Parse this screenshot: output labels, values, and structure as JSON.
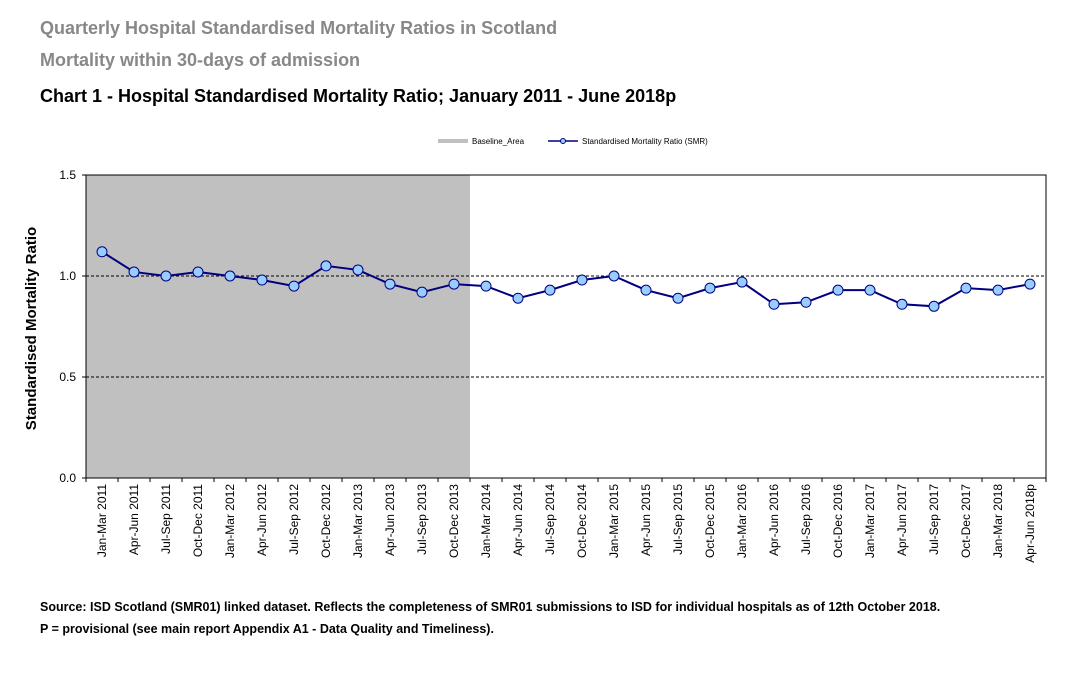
{
  "header": {
    "title": "Quarterly Hospital Standardised Mortality Ratios in Scotland",
    "subtitle": "Mortality within 30-days of admission",
    "chart_heading": "Chart 1 - Hospital Standardised Mortality Ratio; January 2011 - June 2018p"
  },
  "chart_data": {
    "type": "line",
    "ylabel": "Standardised Mortality Ratio",
    "xlabel": "",
    "ylim": [
      0,
      1.5
    ],
    "yticks": [
      "0.0",
      "0.5",
      "1.0",
      "1.5"
    ],
    "grid": "horizontal dashed at 0.5 and 1.0",
    "legend_position": "top-center",
    "categories": [
      "Jan-Mar 2011",
      "Apr-Jun 2011",
      "Jul-Sep 2011",
      "Oct-Dec 2011",
      "Jan-Mar 2012",
      "Apr-Jun 2012",
      "Jul-Sep 2012",
      "Oct-Dec 2012",
      "Jan-Mar 2013",
      "Apr-Jun 2013",
      "Jul-Sep 2013",
      "Oct-Dec 2013",
      "Jan-Mar 2014",
      "Apr-Jun 2014",
      "Jul-Sep 2014",
      "Oct-Dec 2014",
      "Jan-Mar 2015",
      "Apr-Jun 2015",
      "Jul-Sep 2015",
      "Oct-Dec 2015",
      "Jan-Mar 2016",
      "Apr-Jun 2016",
      "Jul-Sep 2016",
      "Oct-Dec 2016",
      "Jan-Mar 2017",
      "Apr-Jun 2017",
      "Jul-Sep 2017",
      "Oct-Dec 2017",
      "Jan-Mar 2018",
      "Apr-Jun 2018p"
    ],
    "series": [
      {
        "name": "Standardised Mortality Ratio (SMR)",
        "color": "#000080",
        "marker_color": "#99ccff",
        "values": [
          1.12,
          1.02,
          1.0,
          1.02,
          1.0,
          0.98,
          0.95,
          1.05,
          1.03,
          0.96,
          0.92,
          0.96,
          0.95,
          0.89,
          0.93,
          0.98,
          1.0,
          0.93,
          0.89,
          0.94,
          0.97,
          0.86,
          0.87,
          0.93,
          0.93,
          0.86,
          0.85,
          0.94,
          0.93,
          0.96
        ]
      }
    ],
    "baseline_area": {
      "name": "Baseline_Area",
      "color": "#c0c0c0",
      "from_category": "Jan-Mar 2011",
      "to_category": "Oct-Dec 2013",
      "height": 1.5
    }
  },
  "footer": {
    "source": "Source: ISD Scotland (SMR01) linked dataset. Reflects the completeness of SMR01 submissions to ISD for individual hospitals as of 12th October 2018.",
    "provisional": "P = provisional (see main report Appendix A1 - Data Quality and Timeliness)."
  }
}
